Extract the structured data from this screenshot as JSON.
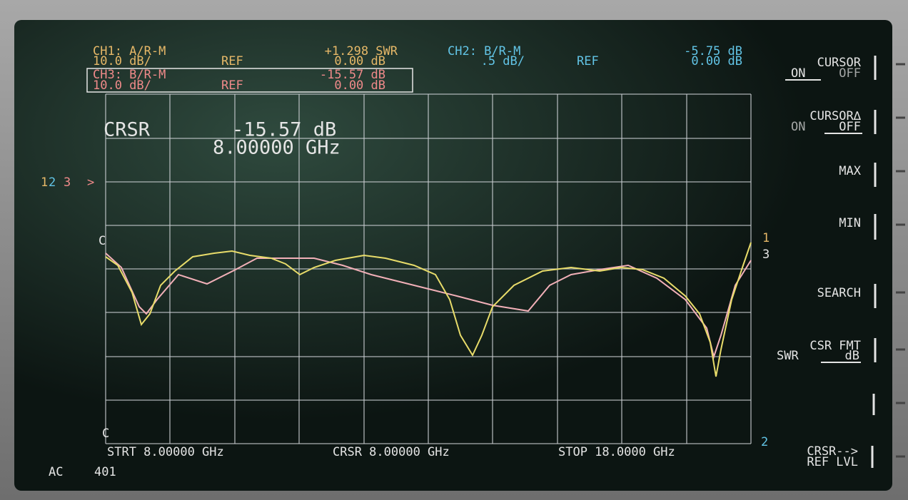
{
  "header": {
    "ch1": {
      "label": "CH1: A/R-M",
      "value": "+1.298 SWR",
      "scale": "10.0 dB/",
      "ref": "REF",
      "ref_value": "0.00 dB"
    },
    "ch2": {
      "label": "CH2: B/R-M",
      "value": "-5.75 dB",
      "scale": ".5 dB/",
      "ref": "REF",
      "ref_value": "0.00 dB"
    },
    "ch3": {
      "label": "CH3: B/R-M",
      "value": "-15.57 dB",
      "scale": "10.0 dB/",
      "ref": "REF",
      "ref_value": "0.00 dB"
    }
  },
  "cursor_readout": {
    "label": "CRSR",
    "value": "-15.57 dB",
    "frequency": "8.00000 GHz"
  },
  "markers": {
    "left": [
      "1",
      "2",
      "3"
    ],
    "reference_arrow": ">",
    "right": [
      "1",
      "3",
      "2"
    ],
    "cursor_top": "C",
    "cursor_bottom": "C"
  },
  "footer": {
    "start": "STRT 8.00000 GHz",
    "cursor": "CRSR 8.00000 GHz",
    "stop": "STOP 18.0000 GHz",
    "mode": "AC",
    "points": "401"
  },
  "softkeys": [
    {
      "label": "CURSOR",
      "options": [
        "ON",
        "OFF"
      ]
    },
    {
      "label": "CURSOR∆",
      "options": [
        "ON",
        "OFF"
      ]
    },
    {
      "label": "MAX"
    },
    {
      "label": "MIN"
    },
    {
      "label": "SEARCH"
    },
    {
      "label": "CSR FMT",
      "options": [
        "SWR",
        "dB"
      ]
    },
    {
      "label": "CRSR-->",
      "sublabel": "REF LVL"
    }
  ]
}
